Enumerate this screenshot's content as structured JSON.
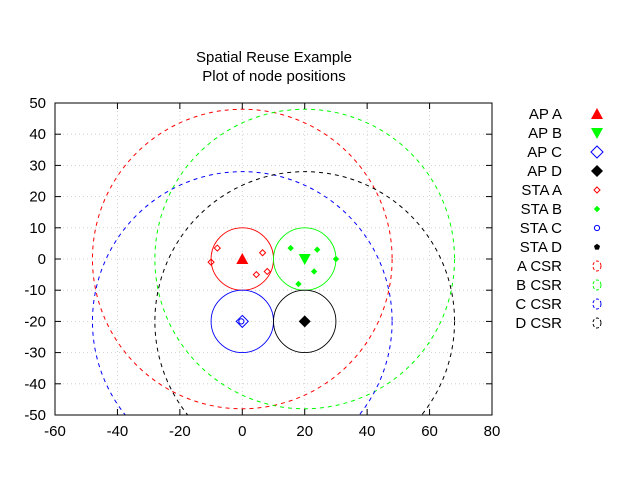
{
  "chart_data": {
    "type": "scatter",
    "title": [
      "Spatial Reuse Example",
      "Plot of node positions"
    ],
    "xlabel": "",
    "ylabel": "",
    "xlim": [
      -60,
      80
    ],
    "ylim": [
      -50,
      50
    ],
    "xticks": [
      -60,
      -40,
      -20,
      0,
      20,
      40,
      60,
      80
    ],
    "yticks": [
      -50,
      -40,
      -30,
      -20,
      -10,
      0,
      10,
      20,
      30,
      40,
      50
    ],
    "grid": true,
    "legend_position": "right",
    "series": [
      {
        "name": "AP A",
        "color": "#ff0000",
        "marker": "triangle-up-filled",
        "points": [
          [
            0,
            0
          ]
        ]
      },
      {
        "name": "AP B",
        "color": "#00ff00",
        "marker": "triangle-down-filled",
        "points": [
          [
            20,
            0
          ]
        ]
      },
      {
        "name": "AP C",
        "color": "#0000ff",
        "marker": "diamond-open",
        "points": [
          [
            0,
            -20
          ]
        ]
      },
      {
        "name": "AP D",
        "color": "#000000",
        "marker": "diamond-filled",
        "points": [
          [
            20,
            -20
          ]
        ]
      },
      {
        "name": "STA A",
        "color": "#ff0000",
        "marker": "small-diamond-open",
        "points": [
          [
            -10,
            -1
          ],
          [
            -8,
            3.5
          ],
          [
            6.5,
            2
          ],
          [
            8,
            -4
          ],
          [
            4.5,
            -5
          ]
        ]
      },
      {
        "name": "STA B",
        "color": "#00ff00",
        "marker": "small-diamond-filled",
        "points": [
          [
            15.5,
            3.5
          ],
          [
            24,
            3
          ],
          [
            30,
            0
          ],
          [
            23,
            -4
          ],
          [
            18,
            -8
          ]
        ]
      },
      {
        "name": "STA C",
        "color": "#0000ff",
        "marker": "small-circle-open",
        "points": [
          [
            -0.3,
            -20
          ]
        ]
      },
      {
        "name": "STA D",
        "color": "#000000",
        "marker": "small-pentagon-filled",
        "points": []
      },
      {
        "name": "A CSR",
        "color": "#ff0000",
        "marker": "dashed-circle",
        "center": [
          0,
          0
        ],
        "radius": 48
      },
      {
        "name": "B CSR",
        "color": "#00ff00",
        "marker": "dashed-circle",
        "center": [
          20,
          0
        ],
        "radius": 48
      },
      {
        "name": "C CSR",
        "color": "#0000ff",
        "marker": "dashed-circle",
        "center": [
          0,
          -20
        ],
        "radius": 48
      },
      {
        "name": "D CSR",
        "color": "#000000",
        "marker": "dashed-circle",
        "center": [
          20,
          -20
        ],
        "radius": 48
      }
    ],
    "coverage_circles": [
      {
        "color": "#ff0000",
        "center": [
          0,
          0
        ],
        "radius": 10
      },
      {
        "color": "#00ff00",
        "center": [
          20,
          0
        ],
        "radius": 10
      },
      {
        "color": "#0000ff",
        "center": [
          0,
          -20
        ],
        "radius": 10
      },
      {
        "color": "#000000",
        "center": [
          20,
          -20
        ],
        "radius": 10
      }
    ]
  }
}
